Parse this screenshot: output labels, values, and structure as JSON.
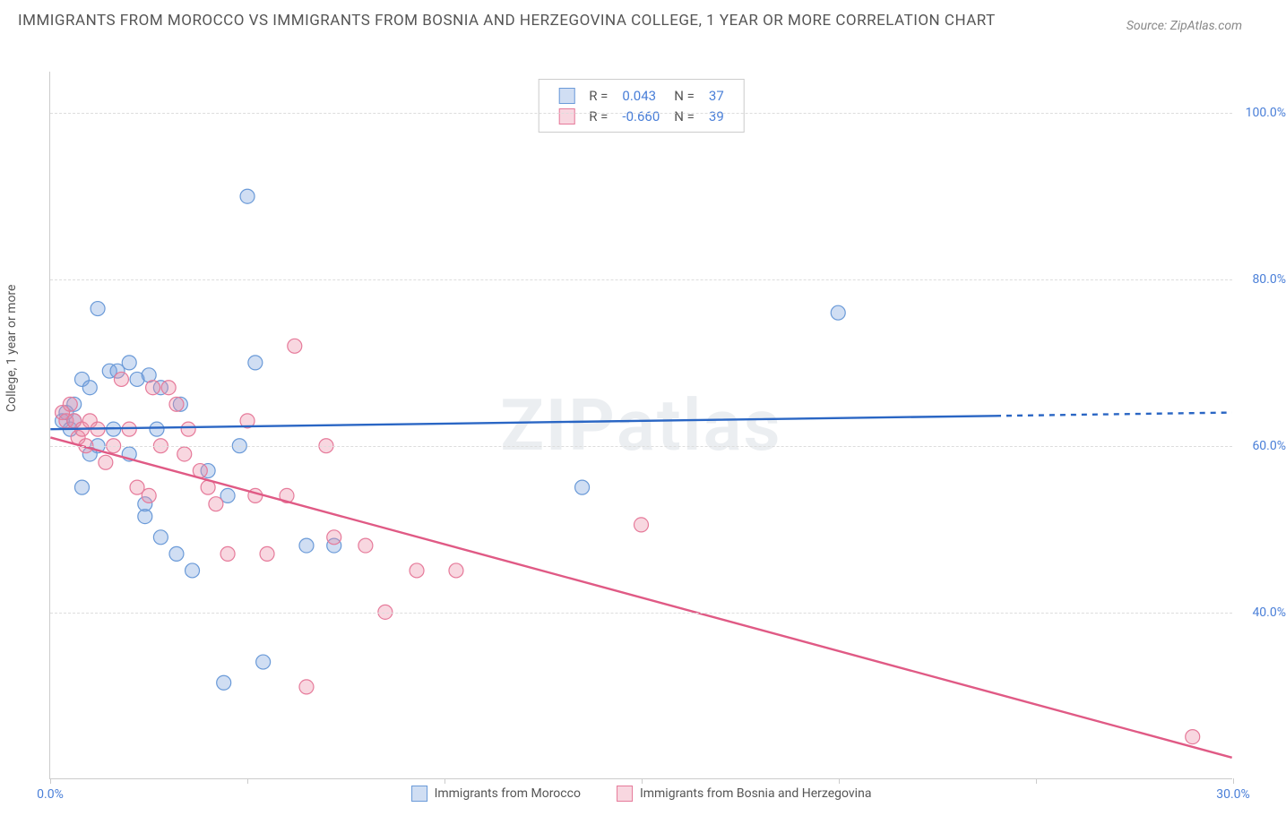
{
  "title": "IMMIGRANTS FROM MOROCCO VS IMMIGRANTS FROM BOSNIA AND HERZEGOVINA COLLEGE, 1 YEAR OR MORE CORRELATION CHART",
  "source": "Source: ZipAtlas.com",
  "ylabel": "College, 1 year or more",
  "watermark_bold": "ZIP",
  "watermark_light": "atlas",
  "chart": {
    "type": "scatter",
    "xlim": [
      0,
      30
    ],
    "ylim": [
      20,
      105
    ],
    "ytick_values": [
      40,
      60,
      80,
      100
    ],
    "ytick_labels": [
      "40.0%",
      "60.0%",
      "80.0%",
      "100.0%"
    ],
    "xtick_values": [
      0,
      5,
      10,
      15,
      20,
      25,
      30
    ],
    "xtick_labels": {
      "0": "0.0%",
      "30": "30.0%"
    },
    "grid_color": "#dddddd",
    "axis_color": "#cccccc",
    "marker_radius": 8,
    "marker_stroke_width": 1.2,
    "line_width": 2.4,
    "series": [
      {
        "name": "Immigrants from Morocco",
        "color_fill": "rgba(120,160,220,0.35)",
        "color_stroke": "#6a9ad8",
        "line_color": "#2a66c4",
        "r_label": "R =",
        "r_value": "0.043",
        "n_label": "N =",
        "n_value": "37",
        "trend": {
          "x1": 0,
          "y1": 62,
          "x2": 30,
          "y2": 64,
          "data_xmax": 24
        },
        "points": [
          [
            0.3,
            63
          ],
          [
            0.4,
            64
          ],
          [
            0.5,
            62
          ],
          [
            0.6,
            65
          ],
          [
            0.6,
            63
          ],
          [
            0.8,
            68
          ],
          [
            1.0,
            67
          ],
          [
            1.2,
            76.5
          ],
          [
            1.5,
            69
          ],
          [
            1.7,
            69
          ],
          [
            2.0,
            70
          ],
          [
            2.2,
            68
          ],
          [
            2.5,
            68.5
          ],
          [
            2.8,
            67
          ],
          [
            0.8,
            55
          ],
          [
            1.2,
            60
          ],
          [
            1.6,
            62
          ],
          [
            2.0,
            59
          ],
          [
            2.4,
            53
          ],
          [
            2.4,
            51.5
          ],
          [
            2.8,
            49
          ],
          [
            3.2,
            47
          ],
          [
            3.6,
            45
          ],
          [
            1.0,
            59
          ],
          [
            4.0,
            57
          ],
          [
            4.5,
            54
          ],
          [
            4.8,
            60
          ],
          [
            5.0,
            90
          ],
          [
            5.2,
            70
          ],
          [
            6.5,
            48
          ],
          [
            7.2,
            48
          ],
          [
            5.4,
            34
          ],
          [
            4.4,
            31.5
          ],
          [
            13.5,
            55
          ],
          [
            20.0,
            76
          ],
          [
            2.7,
            62
          ],
          [
            3.3,
            65
          ]
        ]
      },
      {
        "name": "Immigrants from Bosnia and Herzegovina",
        "color_fill": "rgba(235,140,165,0.35)",
        "color_stroke": "#e67a9a",
        "line_color": "#e05a85",
        "r_label": "R =",
        "r_value": "-0.660",
        "n_label": "N =",
        "n_value": "39",
        "trend": {
          "x1": 0,
          "y1": 61,
          "x2": 30,
          "y2": 22.5,
          "data_xmax": 30
        },
        "points": [
          [
            0.3,
            64
          ],
          [
            0.4,
            63
          ],
          [
            0.5,
            65
          ],
          [
            0.6,
            63
          ],
          [
            0.7,
            61
          ],
          [
            0.8,
            62
          ],
          [
            0.9,
            60
          ],
          [
            1.0,
            63
          ],
          [
            1.2,
            62
          ],
          [
            1.4,
            58
          ],
          [
            1.6,
            60
          ],
          [
            2.0,
            62
          ],
          [
            2.2,
            55
          ],
          [
            2.5,
            54
          ],
          [
            2.8,
            60
          ],
          [
            3.0,
            67
          ],
          [
            3.2,
            65
          ],
          [
            3.5,
            62
          ],
          [
            3.8,
            57
          ],
          [
            4.0,
            55
          ],
          [
            4.2,
            53
          ],
          [
            4.5,
            47
          ],
          [
            5.0,
            63
          ],
          [
            5.2,
            54
          ],
          [
            5.5,
            47
          ],
          [
            6.0,
            54
          ],
          [
            6.2,
            72
          ],
          [
            6.5,
            31
          ],
          [
            7.0,
            60
          ],
          [
            7.2,
            49
          ],
          [
            8.0,
            48
          ],
          [
            8.5,
            40
          ],
          [
            9.3,
            45
          ],
          [
            10.3,
            45
          ],
          [
            15.0,
            50.5
          ],
          [
            29.0,
            25
          ],
          [
            1.8,
            68
          ],
          [
            2.6,
            67
          ],
          [
            3.4,
            59
          ]
        ]
      }
    ]
  },
  "legend_bottom": [
    "Immigrants from Morocco",
    "Immigrants from Bosnia and Herzegovina"
  ]
}
